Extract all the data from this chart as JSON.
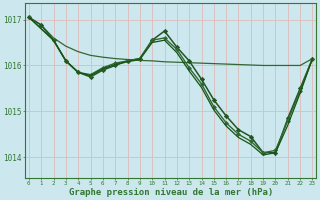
{
  "background_color": "#cce8ee",
  "grid_color": "#c0dde4",
  "spine_color": "#337733",
  "tick_color": "#337733",
  "xlabel": "Graphe pression niveau de la mer (hPa)",
  "xlabel_fontsize": 6.5,
  "ylabel_ticks": [
    1014,
    1015,
    1016,
    1017
  ],
  "xlim": [
    -0.3,
    23.3
  ],
  "ylim": [
    1013.55,
    1017.35
  ],
  "xticks": [
    0,
    1,
    2,
    3,
    4,
    5,
    6,
    7,
    8,
    9,
    10,
    11,
    12,
    13,
    14,
    15,
    16,
    17,
    18,
    19,
    20,
    21,
    22,
    23
  ],
  "series": [
    {
      "x": [
        0,
        1,
        2,
        3,
        4,
        5,
        6,
        7,
        8,
        9,
        10,
        11,
        12,
        13,
        14,
        15,
        16,
        17,
        18,
        19,
        20,
        21,
        22,
        23
      ],
      "y": [
        1017.05,
        1016.88,
        1016.6,
        1016.42,
        1016.3,
        1016.22,
        1016.18,
        1016.15,
        1016.13,
        1016.11,
        1016.1,
        1016.08,
        1016.07,
        1016.06,
        1016.05,
        1016.04,
        1016.03,
        1016.02,
        1016.01,
        1016.0,
        1016.0,
        1016.0,
        1016.0,
        1016.15
      ],
      "color": "#336633",
      "linewidth": 0.9,
      "marker": null,
      "markersize": 0
    },
    {
      "x": [
        0,
        1,
        2,
        3,
        4,
        5,
        6,
        7,
        8,
        9,
        10,
        11,
        12,
        13,
        14,
        15,
        16,
        17,
        18,
        19,
        20,
        21,
        22,
        23
      ],
      "y": [
        1017.05,
        1016.88,
        1016.55,
        1016.1,
        1015.85,
        1015.75,
        1015.9,
        1016.0,
        1016.1,
        1016.15,
        1016.55,
        1016.75,
        1016.4,
        1016.1,
        1015.7,
        1015.25,
        1014.9,
        1014.6,
        1014.45,
        1014.1,
        1014.1,
        1014.85,
        1015.5,
        1016.15
      ],
      "color": "#225522",
      "linewidth": 1.1,
      "marker": "D",
      "markersize": 2.2
    },
    {
      "x": [
        0,
        2,
        3,
        4,
        5,
        6,
        7,
        8,
        9,
        10,
        11,
        12,
        13,
        14,
        15,
        16,
        17,
        18,
        19,
        20,
        21,
        22,
        23
      ],
      "y": [
        1017.05,
        1016.55,
        1016.1,
        1015.85,
        1015.8,
        1015.95,
        1016.05,
        1016.1,
        1016.15,
        1016.55,
        1016.6,
        1016.35,
        1015.95,
        1015.6,
        1015.1,
        1014.75,
        1014.5,
        1014.35,
        1014.1,
        1014.15,
        1014.8,
        1015.45,
        1016.15
      ],
      "color": "#336633",
      "linewidth": 1.0,
      "marker": "D",
      "markersize": 2.0
    },
    {
      "x": [
        0,
        2,
        3,
        4,
        5,
        6,
        7,
        8,
        9,
        10,
        11,
        12,
        13,
        14,
        15,
        16,
        17,
        18,
        19,
        20,
        21,
        22,
        23
      ],
      "y": [
        1017.05,
        1016.55,
        1016.1,
        1015.85,
        1015.78,
        1015.93,
        1016.02,
        1016.08,
        1016.13,
        1016.5,
        1016.55,
        1016.28,
        1015.88,
        1015.52,
        1015.03,
        1014.68,
        1014.43,
        1014.28,
        1014.05,
        1014.1,
        1014.7,
        1015.4,
        1016.15
      ],
      "color": "#115511",
      "linewidth": 0.9,
      "marker": null,
      "markersize": 0
    }
  ]
}
